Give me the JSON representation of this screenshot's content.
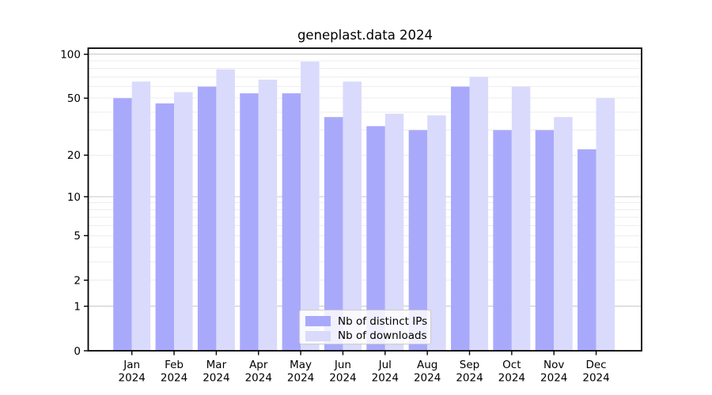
{
  "chart_data": {
    "type": "bar",
    "title": "geneplast.data 2024",
    "categories": [
      "Jan 2024",
      "Feb 2024",
      "Mar 2024",
      "Apr 2024",
      "May 2024",
      "Jun 2024",
      "Jul 2024",
      "Aug 2024",
      "Sep 2024",
      "Oct 2024",
      "Nov 2024",
      "Dec 2024"
    ],
    "series": [
      {
        "name": "Nb of distinct IPs",
        "color": "#a9a9fc",
        "values": [
          50,
          46,
          60,
          54,
          54,
          37,
          32,
          30,
          60,
          30,
          30,
          22
        ]
      },
      {
        "name": "Nb of downloads",
        "color": "#dadafc",
        "values": [
          65,
          55,
          79,
          67,
          89,
          65,
          39,
          38,
          70,
          60,
          37,
          50
        ]
      }
    ],
    "y_axis": {
      "scale": "log1p",
      "ylim": [
        0,
        110
      ],
      "tick_labels": [
        100,
        50,
        20,
        10,
        5,
        2,
        1,
        0
      ],
      "major_gridlines": [
        1,
        10,
        100
      ],
      "minor_gridlines": [
        2,
        3,
        4,
        5,
        6,
        7,
        8,
        9,
        20,
        30,
        40,
        50,
        60,
        70,
        80,
        90
      ]
    },
    "legend_position": "lower center inside plot",
    "grid": true,
    "colors": {
      "major_grid": "#c8c8c8",
      "minor_grid": "#ededed",
      "spine": "#000000",
      "text": "#000000"
    }
  }
}
